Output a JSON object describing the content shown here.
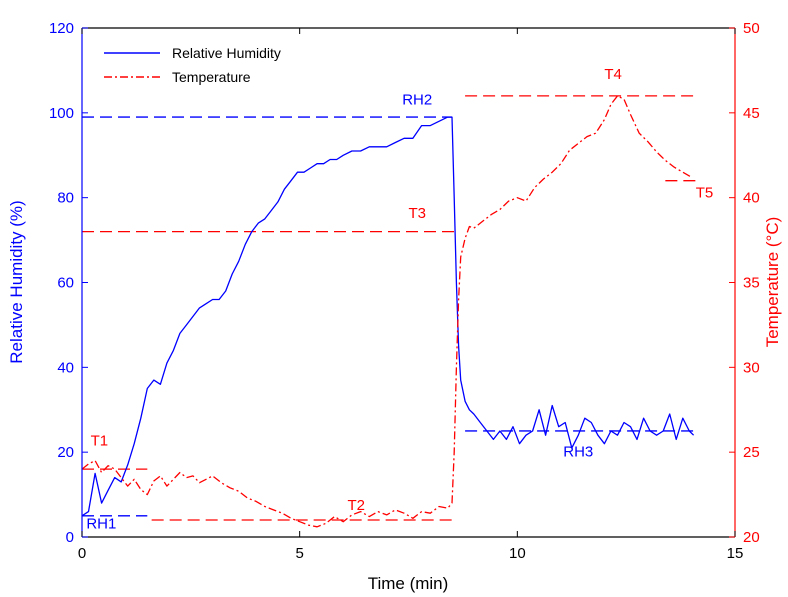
{
  "chart_data": {
    "type": "line",
    "xlabel": "Time (min)",
    "ylabel_left": "Relative Humidity (%)",
    "ylabel_right": "Temperature (°C)",
    "xlim": [
      0,
      15
    ],
    "ylim_left": [
      0,
      120
    ],
    "ylim_right": [
      20,
      50
    ],
    "x_ticks": [
      0,
      5,
      10,
      15
    ],
    "y_ticks_left": [
      0,
      20,
      40,
      60,
      80,
      100,
      120
    ],
    "y_ticks_right": [
      20,
      25,
      30,
      35,
      40,
      45,
      50
    ],
    "grid": false,
    "legend_position": "top-left",
    "colors": {
      "humidity": "#0000ff",
      "temperature": "#ff0000",
      "axis": "#000000"
    },
    "series": [
      {
        "name": "Relative Humidity",
        "axis": "left",
        "style": "solid",
        "x": [
          0,
          0.15,
          0.3,
          0.45,
          0.6,
          0.75,
          0.9,
          1.05,
          1.2,
          1.35,
          1.5,
          1.65,
          1.8,
          1.95,
          2.1,
          2.25,
          2.4,
          2.55,
          2.7,
          2.85,
          3.0,
          3.15,
          3.3,
          3.45,
          3.6,
          3.75,
          3.9,
          4.05,
          4.2,
          4.35,
          4.5,
          4.65,
          4.8,
          4.95,
          5.1,
          5.25,
          5.4,
          5.55,
          5.7,
          5.85,
          6.0,
          6.2,
          6.4,
          6.6,
          6.8,
          7.0,
          7.2,
          7.4,
          7.6,
          7.8,
          8.0,
          8.2,
          8.4,
          8.5,
          8.55,
          8.6,
          8.65,
          8.7,
          8.8,
          8.9,
          9.0,
          9.15,
          9.3,
          9.45,
          9.6,
          9.75,
          9.9,
          10.05,
          10.2,
          10.35,
          10.5,
          10.65,
          10.8,
          10.95,
          11.1,
          11.25,
          11.4,
          11.55,
          11.7,
          11.85,
          12.0,
          12.15,
          12.3,
          12.45,
          12.6,
          12.75,
          12.9,
          13.05,
          13.2,
          13.35,
          13.5,
          13.65,
          13.8,
          13.95,
          14.05
        ],
        "y": [
          5,
          6,
          15,
          8,
          11,
          14,
          13,
          17,
          22,
          28,
          35,
          37,
          36,
          41,
          44,
          48,
          50,
          52,
          54,
          55,
          56,
          56,
          58,
          62,
          65,
          69,
          72,
          74,
          75,
          77,
          79,
          82,
          84,
          86,
          86,
          87,
          88,
          88,
          89,
          89,
          90,
          91,
          91,
          92,
          92,
          92,
          93,
          94,
          94,
          97,
          97,
          98,
          99,
          99,
          80,
          60,
          45,
          37,
          32,
          30,
          29,
          27,
          25,
          23,
          25,
          23,
          26,
          22,
          24,
          25,
          30,
          24,
          31,
          26,
          27,
          21,
          24,
          28,
          27,
          24,
          22,
          25,
          24,
          27,
          26,
          23,
          28,
          25,
          24,
          25,
          29,
          23,
          28,
          25,
          24
        ]
      },
      {
        "name": "Temperature",
        "axis": "right",
        "style": "dashdot",
        "x": [
          0,
          0.15,
          0.3,
          0.45,
          0.6,
          0.75,
          0.9,
          1.05,
          1.2,
          1.35,
          1.5,
          1.65,
          1.8,
          1.95,
          2.1,
          2.25,
          2.4,
          2.55,
          2.7,
          2.85,
          3.0,
          3.2,
          3.4,
          3.6,
          3.8,
          4.0,
          4.2,
          4.4,
          4.6,
          4.8,
          5.0,
          5.2,
          5.4,
          5.6,
          5.8,
          6.0,
          6.2,
          6.4,
          6.6,
          6.8,
          7.0,
          7.2,
          7.4,
          7.6,
          7.8,
          8.0,
          8.2,
          8.4,
          8.5,
          8.55,
          8.6,
          8.65,
          8.7,
          8.8,
          8.9,
          9.0,
          9.2,
          9.4,
          9.6,
          9.8,
          10.0,
          10.2,
          10.4,
          10.6,
          10.8,
          11.0,
          11.2,
          11.4,
          11.6,
          11.8,
          12.0,
          12.15,
          12.3,
          12.45,
          12.6,
          12.8,
          13.0,
          13.2,
          13.4,
          13.6,
          13.8,
          14.0
        ],
        "y": [
          24.0,
          24.3,
          24.5,
          23.8,
          24.2,
          24.0,
          23.5,
          23.0,
          23.4,
          22.8,
          22.5,
          23.3,
          23.6,
          23.0,
          23.4,
          23.8,
          23.5,
          23.6,
          23.2,
          23.4,
          23.6,
          23.2,
          22.9,
          22.7,
          22.3,
          22.1,
          21.8,
          21.6,
          21.4,
          21.1,
          20.9,
          20.7,
          20.6,
          20.8,
          21.2,
          20.9,
          21.3,
          21.5,
          21.2,
          21.5,
          21.3,
          21.6,
          21.4,
          21.1,
          21.5,
          21.4,
          21.8,
          21.7,
          22.0,
          25.0,
          30.0,
          34.0,
          36.5,
          37.6,
          38.3,
          38.2,
          38.6,
          39.0,
          39.3,
          39.8,
          40.0,
          39.8,
          40.6,
          41.1,
          41.5,
          42.0,
          42.8,
          43.2,
          43.6,
          43.8,
          44.6,
          45.5,
          46.0,
          45.8,
          44.9,
          43.8,
          43.3,
          42.7,
          42.2,
          41.8,
          41.5,
          41.2
        ]
      }
    ],
    "reference_lines": [
      {
        "label": "RH1",
        "axis": "left",
        "value": 5,
        "x_start": 0,
        "x_end": 1.5,
        "color": "#0000ff",
        "label_x": 0.1,
        "label_y": 2,
        "anchor": "start"
      },
      {
        "label": "RH2",
        "axis": "left",
        "value": 99,
        "x_start": 0,
        "x_end": 8.5,
        "color": "#0000ff",
        "label_x": 7.7,
        "label_y": 102,
        "anchor": "middle"
      },
      {
        "label": "RH3",
        "axis": "left",
        "value": 25,
        "x_start": 8.8,
        "x_end": 14.1,
        "color": "#0000ff",
        "label_x": 11.4,
        "label_y": 19,
        "anchor": "middle"
      },
      {
        "label": "T1",
        "axis": "right",
        "value": 24,
        "x_start": 0,
        "x_end": 1.5,
        "color": "#ff0000",
        "label_x": 0.4,
        "label_y": 25.4,
        "anchor": "middle"
      },
      {
        "label": "T2",
        "axis": "right",
        "value": 21,
        "x_start": 1.6,
        "x_end": 8.6,
        "color": "#ff0000",
        "label_x": 6.3,
        "label_y": 21.6,
        "anchor": "middle"
      },
      {
        "label": "T3",
        "axis": "right",
        "value": 38,
        "x_start": 0,
        "x_end": 8.6,
        "color": "#ff0000",
        "label_x": 7.7,
        "label_y": 38.8,
        "anchor": "middle"
      },
      {
        "label": "T4",
        "axis": "right",
        "value": 46,
        "x_start": 8.8,
        "x_end": 14.1,
        "color": "#ff0000",
        "label_x": 12.2,
        "label_y": 47.0,
        "anchor": "middle"
      },
      {
        "label": "T5",
        "axis": "right",
        "value": 41,
        "x_start": 13.4,
        "x_end": 14.1,
        "color": "#ff0000",
        "label_x": 14.3,
        "label_y": 40.0,
        "anchor": "middle"
      }
    ]
  }
}
